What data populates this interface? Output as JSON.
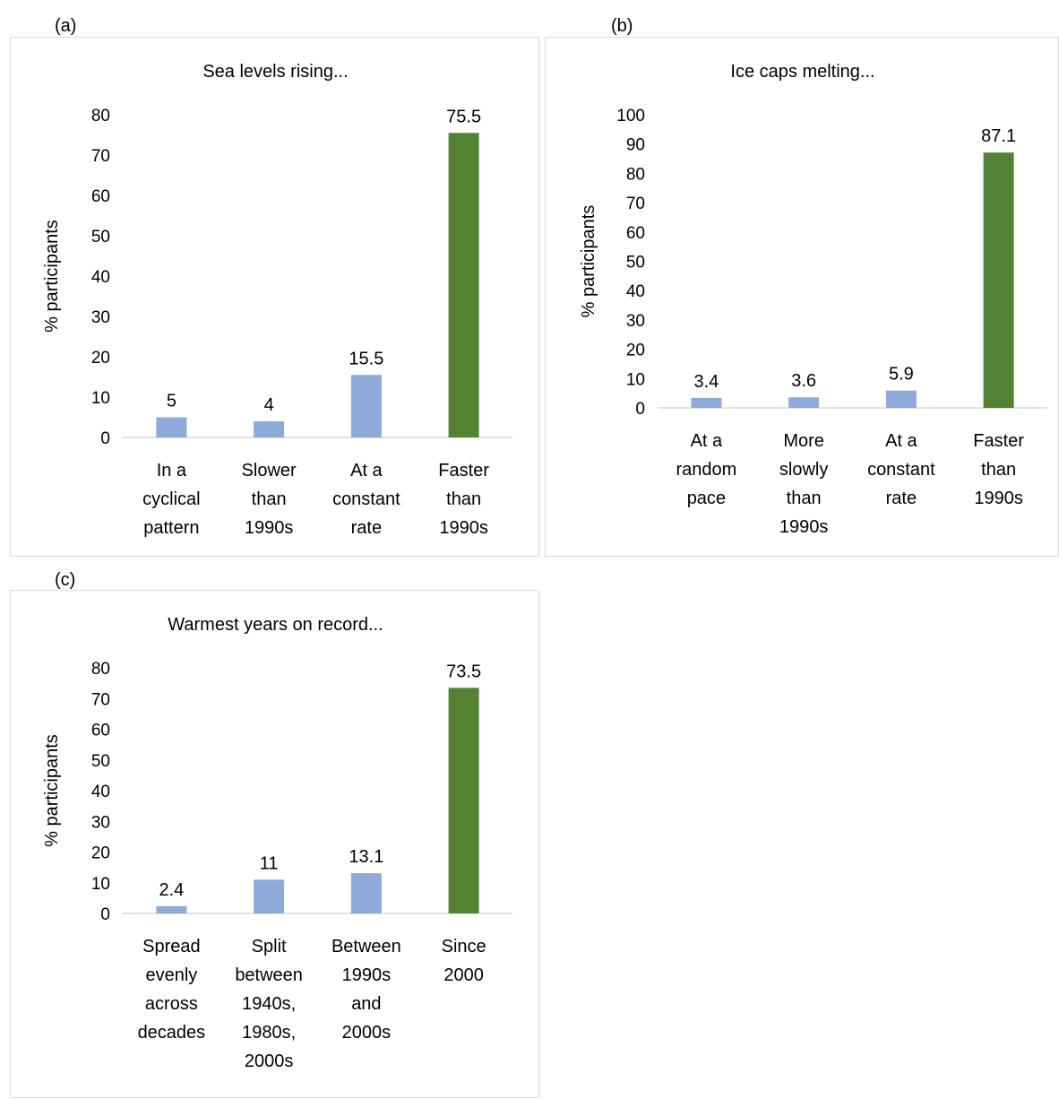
{
  "colors": {
    "bar": "#8eaadb",
    "highlight": "#548235",
    "axis": "#d9d9d9",
    "border": "#d9d9d9"
  },
  "chart_data": [
    {
      "panel": "(a)",
      "type": "bar",
      "title": "Sea levels rising...",
      "ylabel": "% participants",
      "xlabel": "",
      "ylim": [
        0,
        80
      ],
      "yticks": [
        0,
        10,
        20,
        30,
        40,
        50,
        60,
        70,
        80
      ],
      "categories": [
        [
          "In a",
          "cyclical",
          "pattern"
        ],
        [
          "Slower",
          "than",
          "1990s"
        ],
        [
          "At a",
          "constant",
          "rate"
        ],
        [
          "Faster",
          "than",
          "1990s"
        ]
      ],
      "values": [
        5,
        4,
        15.5,
        75.5
      ],
      "value_labels": [
        "5",
        "4",
        "15.5",
        "75.5"
      ],
      "highlight_index": 3,
      "grid": false,
      "legend": "none"
    },
    {
      "panel": "(b)",
      "type": "bar",
      "title": "Ice caps melting...",
      "ylabel": "% participants",
      "xlabel": "",
      "ylim": [
        0,
        100
      ],
      "yticks": [
        0,
        10,
        20,
        30,
        40,
        50,
        60,
        70,
        80,
        90,
        100
      ],
      "categories": [
        [
          "At a",
          "random",
          "pace"
        ],
        [
          "More",
          "slowly",
          "than",
          "1990s"
        ],
        [
          "At a",
          "constant",
          "rate"
        ],
        [
          "Faster",
          "than",
          "1990s"
        ]
      ],
      "values": [
        3.4,
        3.6,
        5.9,
        87.1
      ],
      "value_labels": [
        "3.4",
        "3.6",
        "5.9",
        "87.1"
      ],
      "highlight_index": 3,
      "grid": false,
      "legend": "none"
    },
    {
      "panel": "(c)",
      "type": "bar",
      "title": "Warmest years on record...",
      "ylabel": "% participants",
      "xlabel": "",
      "ylim": [
        0,
        80
      ],
      "yticks": [
        0,
        10,
        20,
        30,
        40,
        50,
        60,
        70,
        80
      ],
      "categories": [
        [
          "Spread",
          "evenly",
          "across",
          "decades"
        ],
        [
          "Split",
          "between",
          "1940s,",
          "1980s,",
          "2000s"
        ],
        [
          "Between",
          "1990s",
          "and",
          "2000s"
        ],
        [
          "Since",
          "2000"
        ]
      ],
      "values": [
        2.4,
        11,
        13.1,
        73.5
      ],
      "value_labels": [
        "2.4",
        "11",
        "13.1",
        "73.5"
      ],
      "highlight_index": 3,
      "grid": false,
      "legend": "none"
    }
  ]
}
